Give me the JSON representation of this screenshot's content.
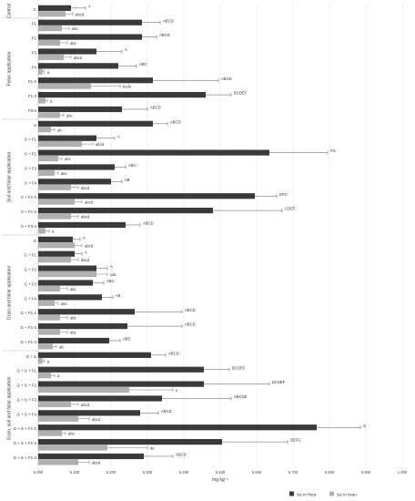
{
  "chart_data": {
    "type": "bar",
    "orientation": "horizontal",
    "xlabel": "mg kg⁻¹",
    "xlim": [
      0,
      1.0
    ],
    "xticks": [
      "0.000",
      "0.100",
      "0.200",
      "0.300",
      "0.400",
      "0.500",
      "0.600",
      "0.700",
      "0.800",
      "0.900",
      "1.000"
    ],
    "grid": "vertical",
    "legend_position": "bottom-right",
    "series": [
      {
        "name": "Se in flour",
        "color": "#3a3a3a"
      },
      {
        "name": "Se in bran",
        "color": "#b0b0b0"
      }
    ],
    "groups": [
      {
        "label": "Control",
        "items": [
          {
            "category": "C",
            "flour": 0.09,
            "flour_err": 0.04,
            "flour_sig": "A",
            "bran": 0.075,
            "bran_err": 0.02,
            "bran_sig": "abcd"
          }
        ]
      },
      {
        "label": "Foliar application",
        "items": [
          {
            "category": "F1",
            "flour": 0.285,
            "flour_err": 0.05,
            "flour_sig": "ABCD",
            "bran": 0.065,
            "bran_err": 0.02,
            "bran_sig": "abc"
          },
          {
            "category": "F2",
            "flour": 0.285,
            "flour_err": 0.04,
            "flour_sig": "ABCD",
            "bran": 0.06,
            "bran_err": 0.02,
            "bran_sig": "abc"
          },
          {
            "category": "F3",
            "flour": 0.16,
            "flour_err": 0.07,
            "flour_sig": "A",
            "bran": 0.07,
            "bran_err": 0.02,
            "bran_sig": "abcd"
          },
          {
            "category": "F4",
            "flour": 0.22,
            "flour_err": 0.05,
            "flour_sig": "ABC",
            "bran": 0.012,
            "bran_err": 0.005,
            "bran_sig": "a"
          },
          {
            "category": "F1-2",
            "flour": 0.315,
            "flour_err": 0.18,
            "flour_sig": "ABCD",
            "bran": 0.145,
            "bran_err": 0.08,
            "bran_sig": "bcde"
          },
          {
            "category": "F1-3",
            "flour": 0.46,
            "flour_err": 0.07,
            "flour_sig": "BCDEF",
            "bran": 0.02,
            "bran_err": 0.005,
            "bran_sig": "a"
          },
          {
            "category": "F3-4",
            "flour": 0.23,
            "flour_err": 0.07,
            "flour_sig": "ABCD",
            "bran": 0.06,
            "bran_err": 0.01,
            "bran_sig": "abc"
          }
        ]
      },
      {
        "label": "Soil and foliar application",
        "items": [
          {
            "category": "S",
            "flour": 0.315,
            "flour_err": 0.04,
            "flour_sig": "ABCD",
            "bran": 0.035,
            "bran_err": 0.01,
            "bran_sig": "ab"
          },
          {
            "category": "S + F1",
            "flour": 0.16,
            "flour_err": 0.05,
            "flour_sig": "A",
            "bran": 0.12,
            "bran_err": 0.03,
            "bran_sig": "abcd"
          },
          {
            "category": "S + F2",
            "flour": 0.635,
            "flour_err": 0.16,
            "flour_sig": "FG",
            "bran": 0.055,
            "bran_err": 0.01,
            "bran_sig": "abc"
          },
          {
            "category": "S + F3",
            "flour": 0.21,
            "flour_err": 0.03,
            "flour_sig": "ABC",
            "bran": 0.045,
            "bran_err": 0.01,
            "bran_sig": "abc"
          },
          {
            "category": "S + F4",
            "flour": 0.2,
            "flour_err": 0.03,
            "flour_sig": "AB",
            "bran": 0.09,
            "bran_err": 0.02,
            "bran_sig": "abcd"
          },
          {
            "category": "S + F1-2",
            "flour": 0.595,
            "flour_err": 0.06,
            "flour_sig": "EFG",
            "bran": 0.1,
            "bran_err": 0.02,
            "bran_sig": "abcd"
          },
          {
            "category": "S + F1-3",
            "flour": 0.48,
            "flour_err": 0.19,
            "flour_sig": "CDEF",
            "bran": 0.09,
            "bran_err": 0.02,
            "bran_sig": "abcd"
          },
          {
            "category": "S + F3-4",
            "flour": 0.24,
            "flour_err": 0.04,
            "flour_sig": "ABCD",
            "bran": 0.02,
            "bran_err": 0.01,
            "bran_sig": "a"
          }
        ]
      },
      {
        "label": "Grain and foliar application",
        "items": [
          {
            "category": "G",
            "flour": 0.095,
            "flour_err": 0.02,
            "flour_sig": "A",
            "bran": 0.1,
            "bran_err": 0.02,
            "bran_sig": "abcd"
          },
          {
            "category": "G + F1",
            "flour": 0.1,
            "flour_err": 0.02,
            "flour_sig": "A",
            "bran": 0.09,
            "bran_err": 0.02,
            "bran_sig": "abcd"
          },
          {
            "category": "G + F2",
            "flour": 0.16,
            "flour_err": 0.03,
            "flour_sig": "A",
            "bran": 0.16,
            "bran_err": 0.03,
            "bran_sig": "cde"
          },
          {
            "category": "G + F3",
            "flour": 0.15,
            "flour_err": 0.03,
            "flour_sig": "ABC",
            "bran": 0.06,
            "bran_err": 0.02,
            "bran_sig": "abc"
          },
          {
            "category": "G + F4",
            "flour": 0.175,
            "flour_err": 0.03,
            "flour_sig": "AB",
            "bran": 0.045,
            "bran_err": 0.01,
            "bran_sig": "abc"
          },
          {
            "category": "G + F1-2",
            "flour": 0.265,
            "flour_err": 0.13,
            "flour_sig": "ABCD",
            "bran": 0.06,
            "bran_err": 0.02,
            "bran_sig": "abc"
          },
          {
            "category": "G + F1-3",
            "flour": 0.245,
            "flour_err": 0.15,
            "flour_sig": "ABCD",
            "bran": 0.06,
            "bran_err": 0.02,
            "bran_sig": "abc"
          },
          {
            "category": "G + F1-4",
            "flour": 0.195,
            "flour_err": 0.03,
            "flour_sig": "ABC",
            "bran": 0.04,
            "bran_err": 0.01,
            "bran_sig": "ab"
          }
        ]
      },
      {
        "label": "Grain, soil and foliar application",
        "items": [
          {
            "category": "G + S",
            "flour": 0.31,
            "flour_err": 0.04,
            "flour_sig": "ABCD",
            "bran": 0.012,
            "bran_err": 0.005,
            "bran_sig": "a"
          },
          {
            "category": "G + S + F1",
            "flour": 0.455,
            "flour_err": 0.07,
            "flour_sig": "BCDEF",
            "bran": 0.035,
            "bran_err": 0.01,
            "bran_sig": "a"
          },
          {
            "category": "G + S + F2",
            "flour": 0.455,
            "flour_err": 0.18,
            "flour_sig": "BCDEF",
            "bran": 0.25,
            "bran_err": 0.12,
            "bran_sig": "e"
          },
          {
            "category": "G + S + F3",
            "flour": 0.34,
            "flour_err": 0.19,
            "flour_sig": "ABCDE",
            "bran": 0.09,
            "bran_err": 0.02,
            "bran_sig": "abcd"
          },
          {
            "category": "G + S + F4",
            "flour": 0.28,
            "flour_err": 0.05,
            "flour_sig": "ABCD",
            "bran": 0.11,
            "bran_err": 0.03,
            "bran_sig": "abcd"
          },
          {
            "category": "G + S + F1-2",
            "flour": 0.765,
            "flour_err": 0.12,
            "flour_sig": "G",
            "bran": 0.065,
            "bran_err": 0.01,
            "bran_sig": "abc"
          },
          {
            "category": "G + S + F1-3",
            "flour": 0.505,
            "flour_err": 0.18,
            "flour_sig": "DEFG",
            "bran": 0.19,
            "bran_err": 0.11,
            "bran_sig": "de"
          },
          {
            "category": "G + S + F1-4",
            "flour": 0.29,
            "flour_err": 0.08,
            "flour_sig": "ABCD",
            "bran": 0.11,
            "bran_err": 0.03,
            "bran_sig": "abcd"
          }
        ]
      }
    ]
  }
}
